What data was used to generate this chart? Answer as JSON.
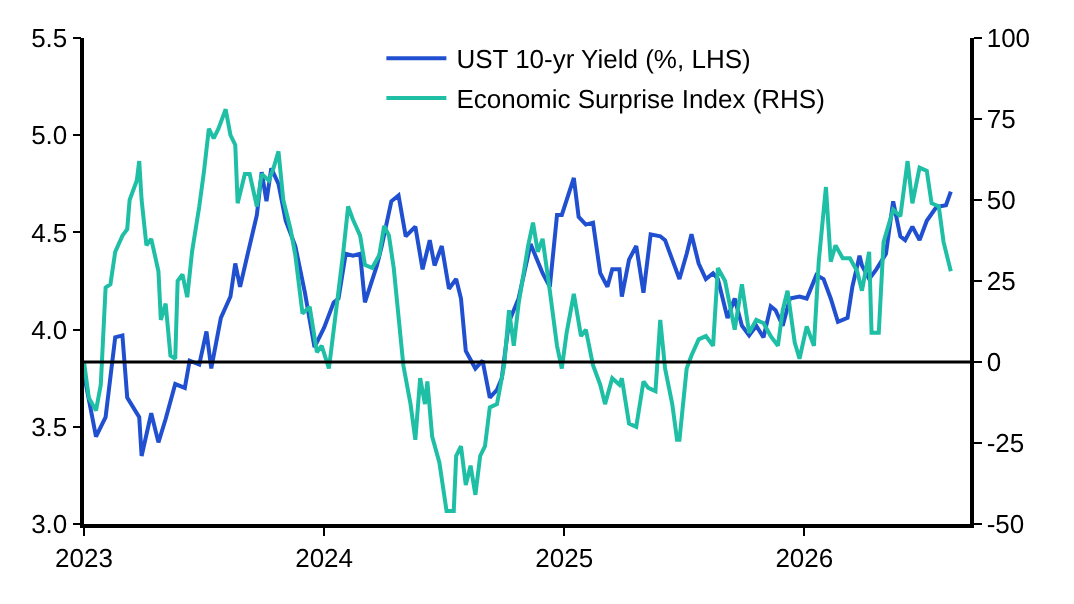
{
  "chart_data": {
    "type": "line",
    "xlim": [
      2023,
      2026.69
    ],
    "xticks": [
      2023,
      2024,
      2025,
      2026
    ],
    "ylim": [
      3.0,
      5.5
    ],
    "yticks": [
      {
        "value": 3.0,
        "label": "3.0"
      },
      {
        "value": 3.5,
        "label": "3.5"
      },
      {
        "value": 4.0,
        "label": "4.0"
      },
      {
        "value": 4.5,
        "label": "4.5"
      },
      {
        "value": 5.0,
        "label": "5.0"
      },
      {
        "value": 5.5,
        "label": "5.5"
      }
    ],
    "y2lim": [
      -50,
      100
    ],
    "y2ticks": [
      -50,
      -25,
      0,
      25,
      50,
      75,
      100
    ],
    "legend": "top",
    "line_style": "solid",
    "marker": "none",
    "ref_lines": [
      {
        "axis": "y2",
        "value": 0,
        "color": "#000000",
        "line_style": "solid"
      }
    ],
    "series": [
      {
        "name": "UST 10-yr Yield (%, LHS)",
        "color": "#2050d0",
        "axis": "y",
        "x": [
          2023.0,
          2023.05,
          2023.09,
          2023.13,
          2023.16,
          2023.18,
          2023.23,
          2023.24,
          2023.28,
          2023.31,
          2023.34,
          2023.38,
          2023.42,
          2023.44,
          2023.48,
          2023.51,
          2023.53,
          2023.57,
          2023.61,
          2023.63,
          2023.65,
          2023.68,
          2023.72,
          2023.74,
          2023.76,
          2023.78,
          2023.81,
          2023.84,
          2023.88,
          2023.92,
          2023.96,
          2024.0,
          2024.04,
          2024.06,
          2024.09,
          2024.12,
          2024.15,
          2024.17,
          2024.22,
          2024.24,
          2024.28,
          2024.31,
          2024.34,
          2024.38,
          2024.41,
          2024.44,
          2024.46,
          2024.49,
          2024.52,
          2024.55,
          2024.57,
          2024.59,
          2024.63,
          2024.66,
          2024.69,
          2024.72,
          2024.74,
          2024.77,
          2024.81,
          2024.86,
          2024.91,
          2024.94,
          2024.97,
          2024.99,
          2025.04,
          2025.06,
          2025.09,
          2025.12,
          2025.15,
          2025.18,
          2025.2,
          2025.23,
          2025.24,
          2025.27,
          2025.3,
          2025.33,
          2025.36,
          2025.4,
          2025.42,
          2025.45,
          2025.48,
          2025.51,
          2025.53,
          2025.56,
          2025.59,
          2025.62,
          2025.64,
          2025.68,
          2025.71,
          2025.74,
          2025.77,
          2025.8,
          2025.83,
          2025.86,
          2025.88,
          2025.91,
          2025.94,
          2025.98,
          2026.01,
          2026.05,
          2026.08,
          2026.11,
          2026.14,
          2026.18,
          2026.2,
          2026.23,
          2026.24,
          2026.27,
          2026.3,
          2026.34,
          2026.37,
          2026.4,
          2026.42,
          2026.45,
          2026.48,
          2026.51,
          2026.55,
          2026.59,
          2026.61
        ],
        "values": [
          3.77,
          3.45,
          3.55,
          3.96,
          3.97,
          3.65,
          3.55,
          3.35,
          3.57,
          3.42,
          3.54,
          3.72,
          3.7,
          3.84,
          3.82,
          3.99,
          3.8,
          4.06,
          4.17,
          4.34,
          4.22,
          4.38,
          4.59,
          4.81,
          4.66,
          4.83,
          4.75,
          4.56,
          4.43,
          4.19,
          3.91,
          4.01,
          4.14,
          4.16,
          4.39,
          4.38,
          4.39,
          4.14,
          4.33,
          4.43,
          4.66,
          4.69,
          4.48,
          4.53,
          4.31,
          4.46,
          4.33,
          4.43,
          4.21,
          4.26,
          4.16,
          3.89,
          3.8,
          3.84,
          3.65,
          3.69,
          3.75,
          4.04,
          4.16,
          4.44,
          4.29,
          4.22,
          4.59,
          4.59,
          4.78,
          4.58,
          4.54,
          4.55,
          4.29,
          4.22,
          4.31,
          4.31,
          4.17,
          4.36,
          4.43,
          4.19,
          4.49,
          4.48,
          4.46,
          4.36,
          4.26,
          4.39,
          4.49,
          4.34,
          4.26,
          4.29,
          4.26,
          4.06,
          4.16,
          4.02,
          3.97,
          4.02,
          3.96,
          4.12,
          4.1,
          4.02,
          4.16,
          4.17,
          4.16,
          4.28,
          4.26,
          4.16,
          4.04,
          4.06,
          4.22,
          4.38,
          4.33,
          4.26,
          4.31,
          4.39,
          4.66,
          4.48,
          4.46,
          4.53,
          4.46,
          4.56,
          4.63,
          4.64,
          4.71
        ]
      },
      {
        "name": "Economic Surprise Index (RHS)",
        "color": "#1fbfa6",
        "axis": "y2",
        "x": [
          2023.0,
          2023.02,
          2023.05,
          2023.07,
          2023.09,
          2023.11,
          2023.13,
          2023.16,
          2023.18,
          2023.19,
          2023.22,
          2023.23,
          2023.24,
          2023.26,
          2023.28,
          2023.31,
          2023.32,
          2023.34,
          2023.36,
          2023.38,
          2023.39,
          2023.41,
          2023.43,
          2023.45,
          2023.48,
          2023.5,
          2023.52,
          2023.54,
          2023.56,
          2023.59,
          2023.61,
          2023.63,
          2023.64,
          2023.67,
          2023.69,
          2023.72,
          2023.74,
          2023.77,
          2023.79,
          2023.81,
          2023.83,
          2023.86,
          2023.88,
          2023.91,
          2023.94,
          2023.97,
          2023.99,
          2024.02,
          2024.05,
          2024.08,
          2024.1,
          2024.12,
          2024.15,
          2024.17,
          2024.2,
          2024.23,
          2024.25,
          2024.27,
          2024.29,
          2024.33,
          2024.36,
          2024.38,
          2024.4,
          2024.42,
          2024.43,
          2024.45,
          2024.48,
          2024.51,
          2024.54,
          2024.55,
          2024.57,
          2024.59,
          2024.61,
          2024.63,
          2024.65,
          2024.67,
          2024.69,
          2024.72,
          2024.75,
          2024.77,
          2024.79,
          2024.81,
          2024.85,
          2024.87,
          2024.89,
          2024.91,
          2024.94,
          2024.97,
          2024.99,
          2025.01,
          2025.04,
          2025.07,
          2025.09,
          2025.12,
          2025.15,
          2025.17,
          2025.2,
          2025.23,
          2025.24,
          2025.27,
          2025.3,
          2025.33,
          2025.35,
          2025.38,
          2025.4,
          2025.42,
          2025.45,
          2025.47,
          2025.48,
          2025.51,
          2025.53,
          2025.56,
          2025.59,
          2025.62,
          2025.64,
          2025.67,
          2025.71,
          2025.74,
          2025.77,
          2025.8,
          2025.83,
          2025.86,
          2025.89,
          2025.91,
          2025.93,
          2025.96,
          2025.98,
          2026.01,
          2026.04,
          2026.06,
          2026.09,
          2026.11,
          2026.13,
          2026.16,
          2026.19,
          2026.22,
          2026.24,
          2026.27,
          2026.28,
          2026.31,
          2026.33,
          2026.37,
          2026.4,
          2026.43,
          2026.45,
          2026.48,
          2026.51,
          2026.53,
          2026.56,
          2026.58,
          2026.61
        ],
        "values": [
          0,
          -11,
          -15,
          -7,
          23,
          24,
          34,
          39,
          41,
          50,
          56,
          62,
          50,
          36,
          38,
          28,
          13,
          18,
          2,
          1,
          25,
          27,
          20,
          34,
          48,
          59,
          72,
          69,
          72,
          78,
          70,
          67,
          49,
          58,
          58,
          48,
          58,
          56,
          60,
          65,
          50,
          41,
          33,
          15,
          17,
          3,
          5,
          -2,
          16,
          34,
          48,
          44,
          39,
          30,
          29,
          33,
          42,
          39,
          29,
          -1,
          -13,
          -24,
          -5,
          -13,
          -6,
          -23,
          -31,
          -46,
          -46,
          -29,
          -26,
          -38,
          -32,
          -41,
          -29,
          -26,
          -14,
          -13,
          -1,
          16,
          5,
          18,
          36,
          43,
          34,
          38,
          22,
          5,
          -2,
          9,
          21,
          8,
          10,
          -1,
          -7,
          -13,
          -5,
          -7,
          -5,
          -19,
          -20,
          -6,
          -8,
          -9,
          13,
          -2,
          -13,
          -24,
          -24,
          -2,
          2,
          7,
          8,
          5,
          29,
          25,
          10,
          24,
          9,
          13,
          12,
          8,
          5,
          16,
          22,
          6,
          1,
          11,
          5,
          31,
          54,
          31,
          36,
          32,
          32,
          28,
          22,
          34,
          9,
          9,
          37,
          47,
          45,
          62,
          49,
          60,
          59,
          49,
          48,
          37,
          28
        ]
      }
    ]
  }
}
